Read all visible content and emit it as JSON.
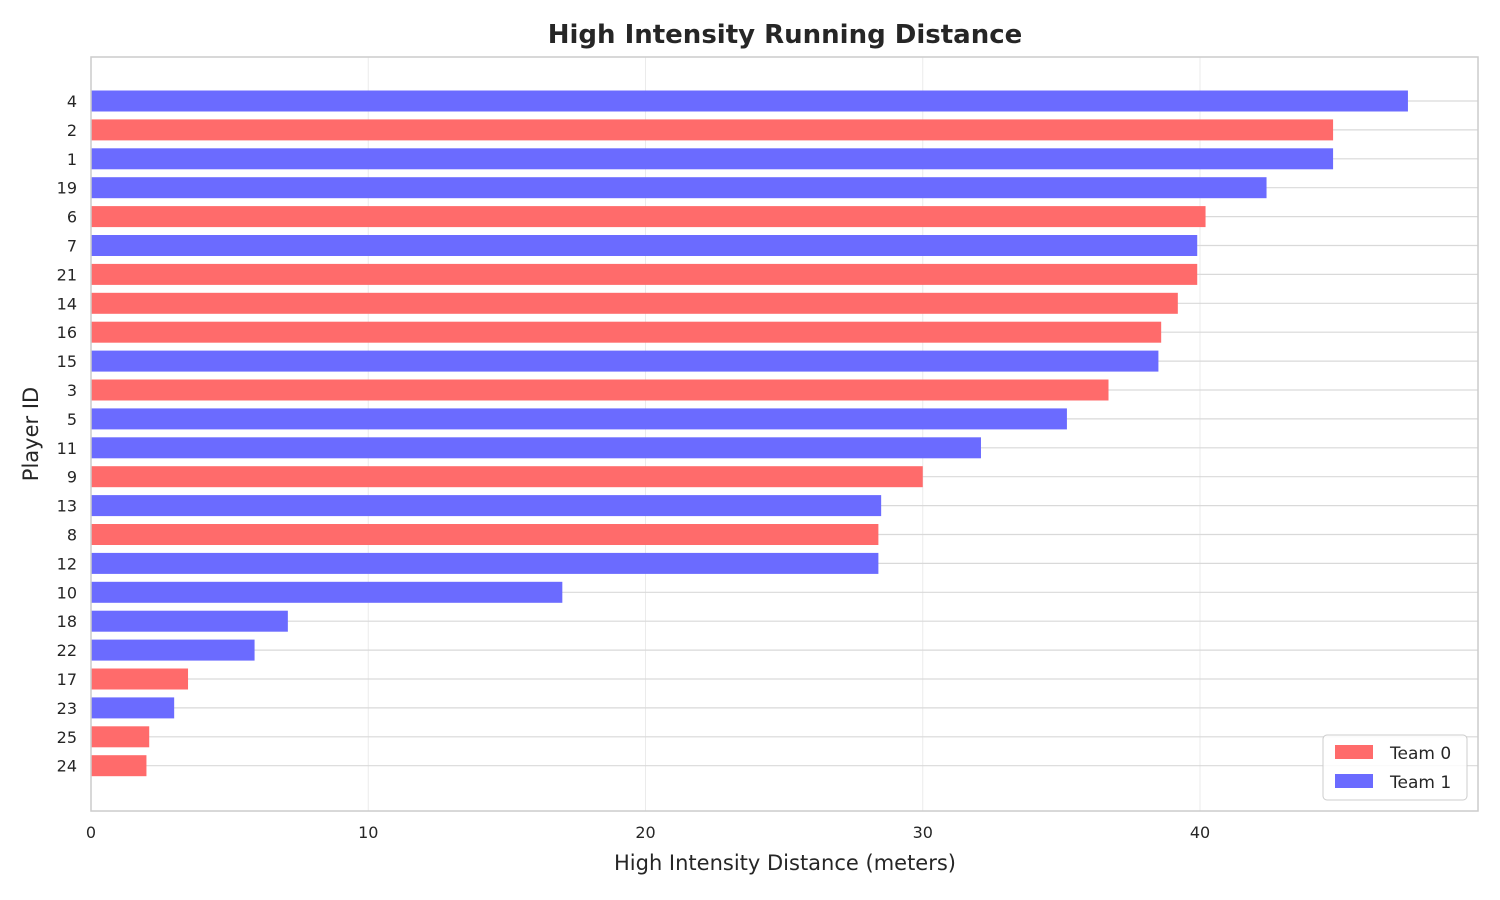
{
  "chart_data": {
    "type": "bar",
    "orientation": "horizontal",
    "title": "High Intensity Running Distance",
    "xlabel": "High Intensity Distance (meters)",
    "ylabel": "Player ID",
    "xlim": [
      0,
      50
    ],
    "xticks": [
      0,
      10,
      20,
      30,
      40
    ],
    "grid": true,
    "legend_position": "bottom-right",
    "teams": [
      {
        "name": "Team 0",
        "color": "#ff6b6b"
      },
      {
        "name": "Team 1",
        "color": "#6b6bff"
      }
    ],
    "bars": [
      {
        "player": "4",
        "team": 1,
        "value": 47.5
      },
      {
        "player": "2",
        "team": 0,
        "value": 44.8
      },
      {
        "player": "1",
        "team": 1,
        "value": 44.8
      },
      {
        "player": "19",
        "team": 1,
        "value": 42.4
      },
      {
        "player": "6",
        "team": 0,
        "value": 40.2
      },
      {
        "player": "7",
        "team": 1,
        "value": 39.9
      },
      {
        "player": "21",
        "team": 0,
        "value": 39.9
      },
      {
        "player": "14",
        "team": 0,
        "value": 39.2
      },
      {
        "player": "16",
        "team": 0,
        "value": 38.6
      },
      {
        "player": "15",
        "team": 1,
        "value": 38.5
      },
      {
        "player": "3",
        "team": 0,
        "value": 36.7
      },
      {
        "player": "5",
        "team": 1,
        "value": 35.2
      },
      {
        "player": "11",
        "team": 1,
        "value": 32.1
      },
      {
        "player": "9",
        "team": 0,
        "value": 30.0
      },
      {
        "player": "13",
        "team": 1,
        "value": 28.5
      },
      {
        "player": "8",
        "team": 0,
        "value": 28.4
      },
      {
        "player": "12",
        "team": 1,
        "value": 28.4
      },
      {
        "player": "10",
        "team": 1,
        "value": 17.0
      },
      {
        "player": "18",
        "team": 1,
        "value": 7.1
      },
      {
        "player": "22",
        "team": 1,
        "value": 5.9
      },
      {
        "player": "17",
        "team": 0,
        "value": 3.5
      },
      {
        "player": "23",
        "team": 1,
        "value": 3.0
      },
      {
        "player": "25",
        "team": 0,
        "value": 2.1
      },
      {
        "player": "24",
        "team": 0,
        "value": 2.0
      }
    ]
  }
}
